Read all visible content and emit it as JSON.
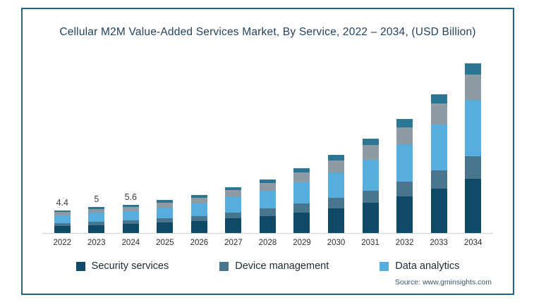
{
  "title": "Cellular M2M Value-Added Services Market, By Service, 2022 – 2034, (USD Billion)",
  "source": "Source: www.gminsights.com",
  "colors": {
    "border": "#1d6687",
    "security": "#0e4a66",
    "device_management": "#49758f",
    "data_analytics": "#55aedd",
    "gray_segment": "#8e9ba4",
    "teal_cap": "#2b7693"
  },
  "legend": [
    {
      "label": "Security services",
      "color": "#0e4a66"
    },
    {
      "label": "Device management",
      "color": "#49758f"
    },
    {
      "label": "Data analytics",
      "color": "#55aedd"
    }
  ],
  "chart_data": {
    "type": "bar",
    "stacked": true,
    "title": "Cellular M2M Value-Added Services Market, By Service, 2022 – 2034, (USD Billion)",
    "xlabel": "",
    "ylabel": "USD Billion",
    "ylim": [
      0,
      35
    ],
    "grid": false,
    "legend_position": "bottom",
    "categories": [
      "2022",
      "2023",
      "2024",
      "2025",
      "2026",
      "2027",
      "2028",
      "2029",
      "2030",
      "2031",
      "2032",
      "2033",
      "2034"
    ],
    "totals": [
      4.4,
      5,
      5.6,
      6.5,
      7.6,
      9.0,
      10.7,
      12.8,
      15.4,
      18.6,
      22.5,
      27.4,
      33.5
    ],
    "data_labels": [
      "4.4",
      "5",
      "5.6",
      "",
      "",
      "",
      "",
      "",
      "",
      "",
      "",
      "",
      ""
    ],
    "series": [
      {
        "name": "Security services",
        "color": "#0e4a66",
        "values": [
          1.4,
          1.6,
          1.8,
          2.1,
          2.4,
          2.9,
          3.4,
          4.1,
          4.9,
          6.0,
          7.2,
          8.8,
          10.7
        ]
      },
      {
        "name": "Device management",
        "color": "#49758f",
        "values": [
          0.6,
          0.7,
          0.7,
          0.8,
          1.0,
          1.2,
          1.4,
          1.7,
          2.0,
          2.4,
          2.9,
          3.6,
          4.4
        ]
      },
      {
        "name": "Data analytics",
        "color": "#55aedd",
        "values": [
          1.5,
          1.7,
          1.8,
          2.1,
          2.5,
          3.0,
          3.5,
          4.2,
          5.1,
          6.1,
          7.4,
          9.0,
          11.1
        ]
      },
      {
        "name": "unlabeled-gray-segment",
        "color": "#8e9ba4",
        "values": [
          0.7,
          0.8,
          0.8,
          1.0,
          1.1,
          1.4,
          1.6,
          1.9,
          2.3,
          2.8,
          3.4,
          4.1,
          5.0
        ]
      },
      {
        "name": "unlabeled-teal-cap",
        "color": "#2b7693",
        "values": [
          0.3,
          0.4,
          0.4,
          0.5,
          0.5,
          0.6,
          0.7,
          0.9,
          1.1,
          1.3,
          1.6,
          1.9,
          2.3
        ]
      }
    ]
  }
}
